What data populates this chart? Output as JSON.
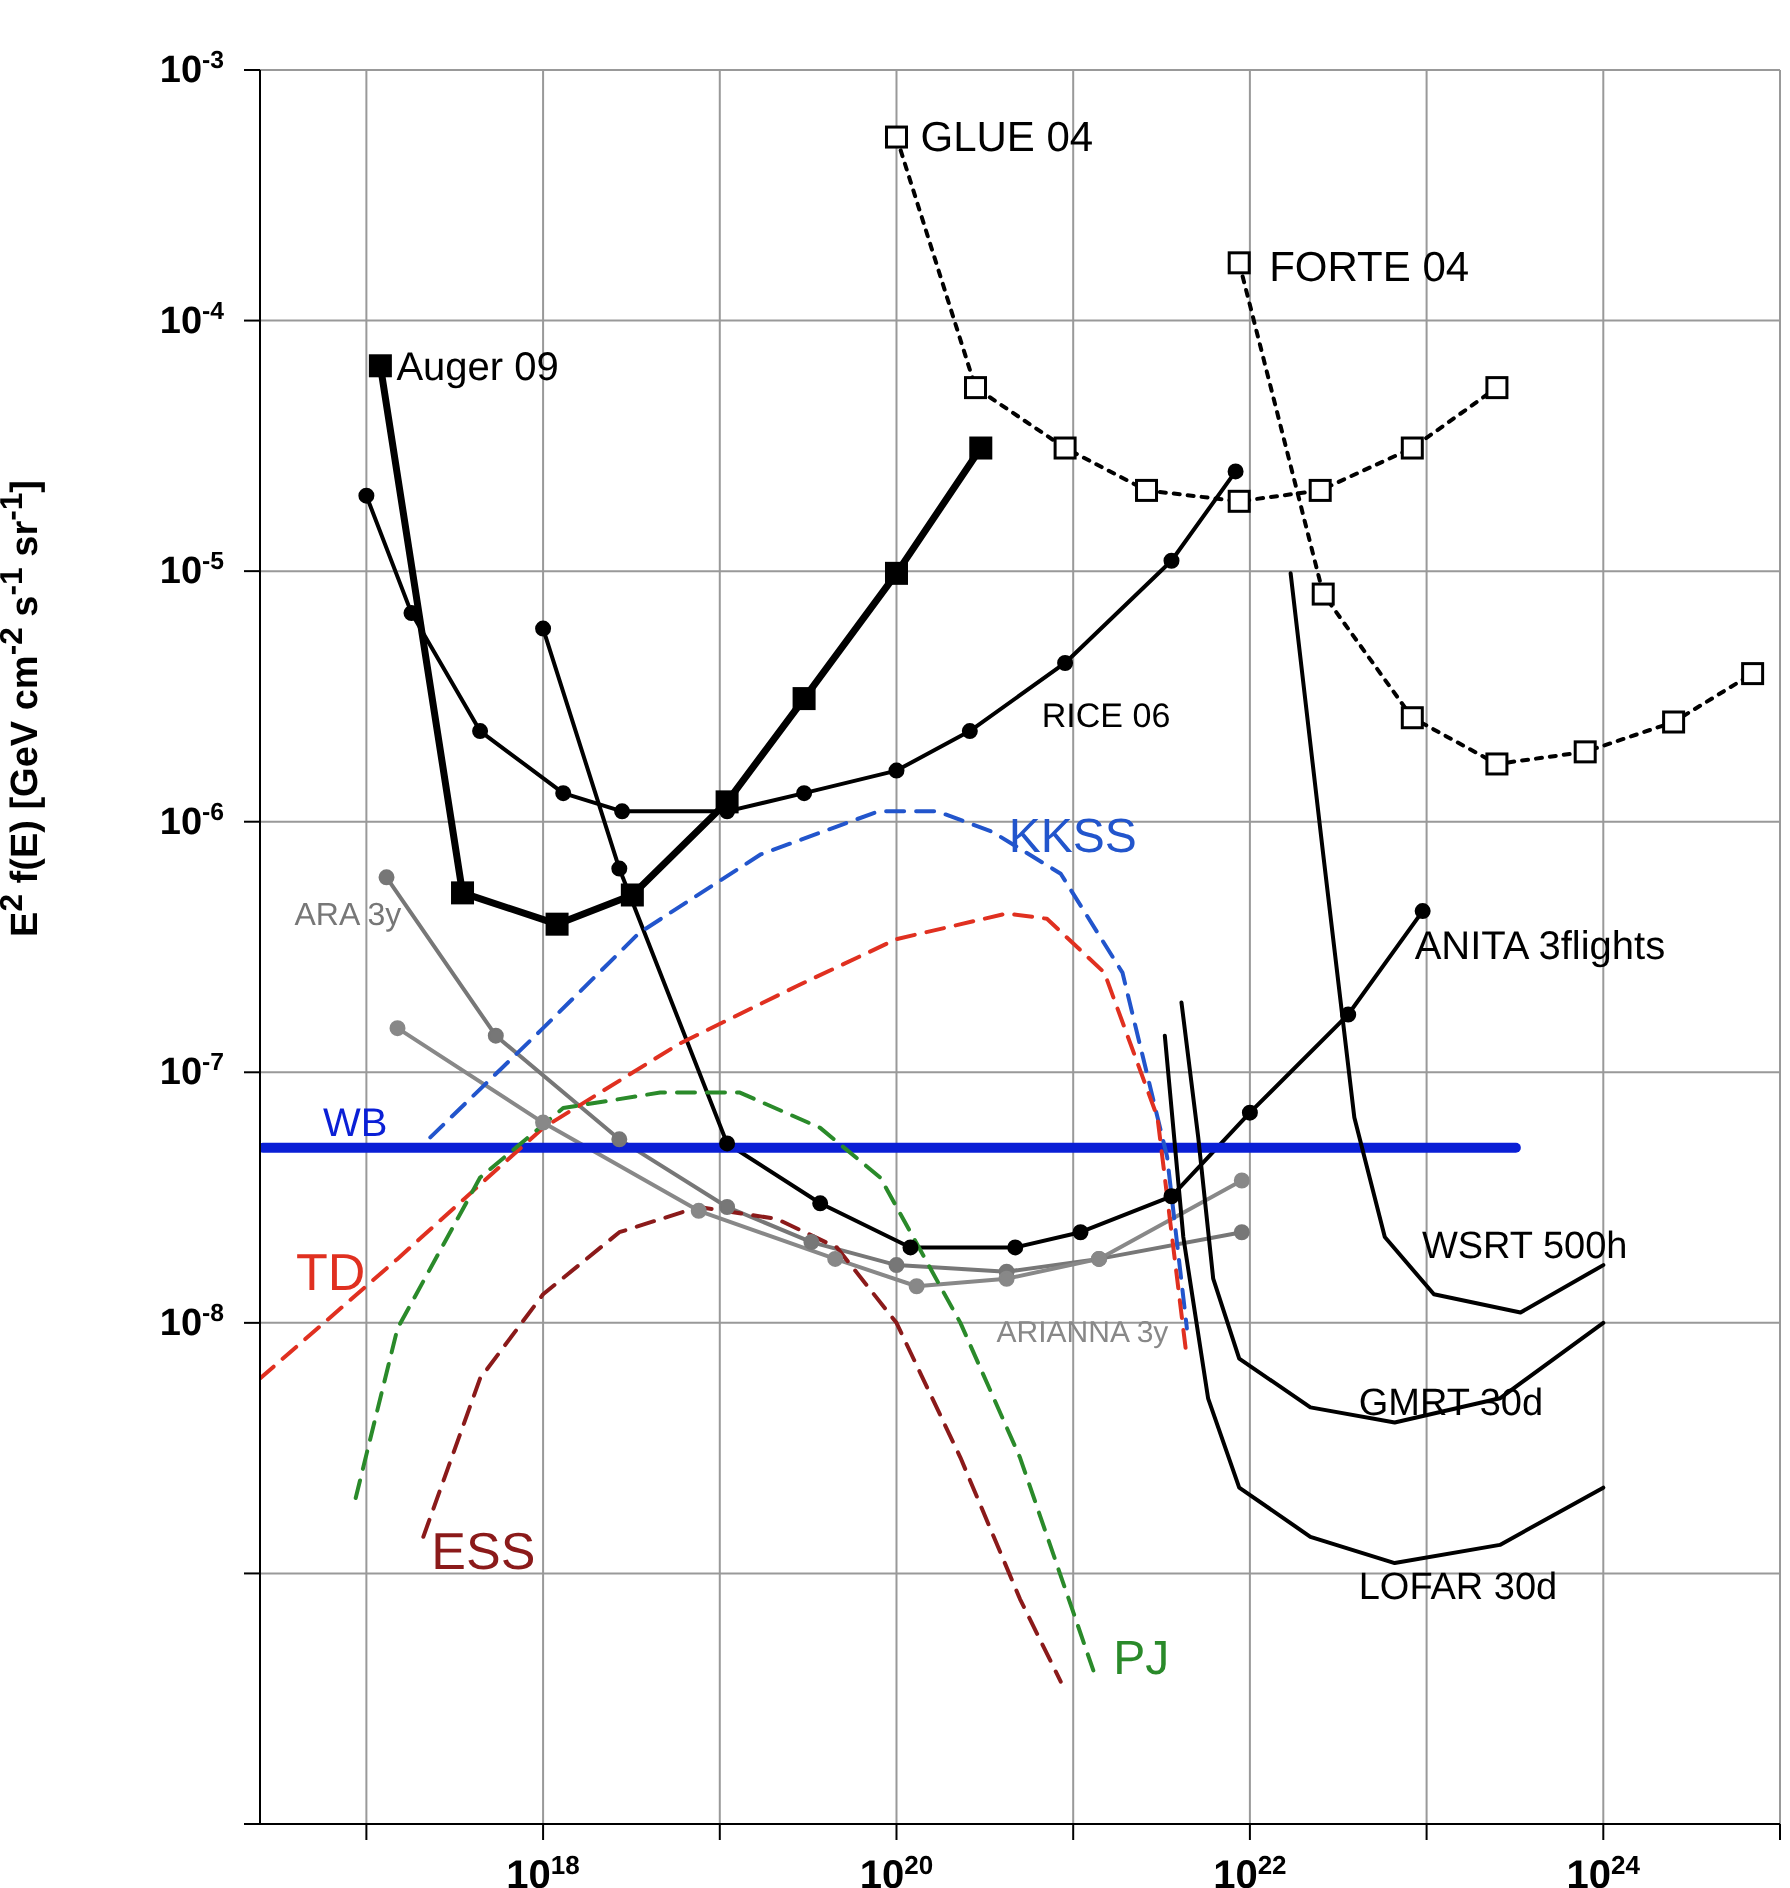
{
  "chart_data": {
    "type": "line",
    "ylabel": "E$^{2}$ f(E) [GeV cm$^{-2}$ s$^{-1}$ sr$^{-1}$]",
    "log": "xy",
    "grid": true,
    "xlim": [
      2.5e+16,
      1e+25
    ],
    "ylim": [
      1e-10,
      0.001
    ],
    "xticks": [
      {
        "value": 1e+17,
        "label": null
      },
      {
        "value": 1e+18,
        "label": "10$^{18}$"
      },
      {
        "value": 1e+19,
        "label": null
      },
      {
        "value": 1e+20,
        "label": "10$^{20}$"
      },
      {
        "value": 1e+21,
        "label": null
      },
      {
        "value": 1e+22,
        "label": "10$^{22}$"
      },
      {
        "value": 1e+23,
        "label": null
      },
      {
        "value": 1e+24,
        "label": "10$^{24}$"
      },
      {
        "value": 1e+25,
        "label": null
      }
    ],
    "yticks": [
      {
        "value": 1e-10,
        "label": null
      },
      {
        "value": 1e-09,
        "label": null
      },
      {
        "value": 1e-08,
        "label": "10$^{-8}$"
      },
      {
        "value": 1e-07,
        "label": "10$^{-7}$"
      },
      {
        "value": 1e-06,
        "label": "10$^{-6}$"
      },
      {
        "value": 1e-05,
        "label": "10$^{-5}$"
      },
      {
        "value": 0.0001,
        "label": "10$^{-4}$"
      },
      {
        "value": 0.001,
        "label": "10$^{-3}$"
      }
    ],
    "series": [
      {
        "name": "Auger 09",
        "color": "#000000",
        "marker": "square",
        "line_style": "solid",
        "x": [
          1.2e+17,
          3.5e+17,
          1.2e+18,
          3.2e+18,
          1.1e+19,
          3e+19,
          1e+20,
          3e+20
        ],
        "values": [
          6.6e-05,
          5.2e-07,
          3.9e-07,
          5.1e-07,
          1.2e-06,
          3.1e-06,
          9.8e-06,
          3.1e-05
        ]
      },
      {
        "name": "RICE 06",
        "color": "#000000",
        "marker": "circle",
        "line_style": "solid",
        "x": [
          1e+17,
          1.8e+17,
          4.4e+17,
          1.3e+18,
          2.8e+18,
          1.1e+19,
          3e+19,
          1e+20,
          2.6e+20,
          9e+20,
          3.6e+21,
          8.3e+21
        ],
        "values": [
          2e-05,
          6.8e-06,
          2.3e-06,
          1.3e-06,
          1.1e-06,
          1.1e-06,
          1.3e-06,
          1.6e-06,
          2.3e-06,
          4.3e-06,
          1.1e-05,
          2.5e-05
        ]
      },
      {
        "name": "ANITA 3flights",
        "color": "#000000",
        "marker": "circle",
        "line_style": "solid",
        "x": [
          1e+18,
          2.7e+18,
          1.1e+19,
          3.7e+19,
          1.2e+20,
          4.7e+20,
          1.1e+21,
          3.6e+21,
          1e+22,
          3.6e+22,
          9.5e+22
        ],
        "values": [
          5.9e-06,
          6.5e-07,
          5.2e-08,
          3e-08,
          2e-08,
          2e-08,
          2.3e-08,
          3.2e-08,
          6.9e-08,
          1.7e-07,
          4.4e-07
        ]
      },
      {
        "name": "GLUE 04",
        "color": "#000000",
        "marker": "square",
        "line_style": "dotted",
        "x": [
          1e+20,
          2.8e+20,
          9e+20,
          2.6e+21,
          8.7e+21,
          2.5e+22,
          8.3e+22,
          2.5e+23
        ],
        "values": [
          0.00054,
          5.4e-05,
          3.1e-05,
          2.1e-05,
          1.9e-05,
          2.1e-05,
          3.1e-05,
          5.4e-05
        ]
      },
      {
        "name": "FORTE 04",
        "color": "#000000",
        "marker": "square",
        "line_style": "dotted",
        "x": [
          8.7e+21,
          2.6e+22,
          8.3e+22,
          2.5e+23,
          7.9e+23,
          2.5e+24,
          7e+24
        ],
        "values": [
          0.00017,
          8.1e-06,
          2.6e-06,
          1.7e-06,
          1.9e-06,
          2.5e-06,
          3.9e-06
        ]
      },
      {
        "name": "ARA 3y",
        "color": "#777777",
        "marker": "circle",
        "line_style": "solid",
        "x": [
          1.3e+17,
          5.4e+17,
          2.7e+18,
          1.1e+19,
          3.3e+19,
          1e+20,
          4.2e+20,
          1.4e+21,
          9e+21
        ],
        "values": [
          6e-07,
          1.4e-07,
          5.4e-08,
          2.9e-08,
          2.1e-08,
          1.7e-08,
          1.6e-08,
          1.8e-08,
          2.3e-08
        ]
      },
      {
        "name": "ARIANNA 3y",
        "color": "#888888",
        "marker": "circle",
        "line_style": "solid",
        "x": [
          1.5e+17,
          1e+18,
          7.6e+18,
          4.5e+19,
          1.3e+20,
          4.2e+20,
          1.4e+21,
          9e+21
        ],
        "values": [
          1.5e-07,
          6.3e-08,
          2.8e-08,
          1.8e-08,
          1.4e-08,
          1.5e-08,
          1.8e-08,
          3.7e-08
        ]
      },
      {
        "name": "WB",
        "color": "#0a1fd6",
        "marker": "none",
        "line_style": "solid",
        "x": [
          2.6e+16,
          3.2e+23
        ],
        "values": [
          5e-08,
          5e-08
        ]
      },
      {
        "name": "KKSS",
        "color": "#2255cc",
        "marker": "none",
        "line_style": "dashed",
        "x": [
          2.3e+17,
          1e+18,
          3.5e+18,
          1.7e+19,
          7.9e+19,
          1.7e+20,
          3.5e+20,
          8.5e+20,
          1.9e+21,
          3.4e+21,
          4.4e+21
        ],
        "values": [
          5.5e-08,
          1.5e-07,
          3.6e-07,
          7.4e-07,
          1.1e-06,
          1.1e-06,
          9.1e-07,
          6.2e-07,
          2.5e-07,
          4.6e-08,
          9.5e-09
        ]
      },
      {
        "name": "TD",
        "color": "#e03020",
        "marker": "none",
        "line_style": "dashed",
        "x": [
          2.5e+16,
          1.5e+17,
          1e+18,
          5.9e+18,
          2.7e+19,
          1e+20,
          4.2e+20,
          7.1e+20,
          1.5e+21,
          3e+21,
          4.4e+21
        ],
        "values": [
          6e-09,
          1.8e-08,
          6e-08,
          1.3e-07,
          2.2e-07,
          3.4e-07,
          4.3e-07,
          4.1e-07,
          2.5e-07,
          6.6e-08,
          7.2e-09
        ]
      },
      {
        "name": "PJ",
        "color": "#2a8a2a",
        "marker": "none",
        "line_style": "dashed",
        "x": [
          8.7e+16,
          1.5e+17,
          4.4e+17,
          1.3e+18,
          4.6e+18,
          1.3e+19,
          3.7e+19,
          8.1e+19,
          2.3e+20,
          5e+20,
          1.3e+21
        ],
        "values": [
          2e-09,
          9.5e-09,
          3.8e-08,
          7.2e-08,
          8.3e-08,
          8.3e-08,
          6e-08,
          3.8e-08,
          1e-08,
          2.9e-09,
          4.1e-10
        ]
      },
      {
        "name": "ESS",
        "color": "#8b1a1a",
        "marker": "none",
        "line_style": "dashed",
        "x": [
          2.1e+17,
          4.4e+17,
          1e+18,
          2.7e+18,
          7.6e+18,
          2.1e+19,
          4.6e+19,
          1e+20,
          2.3e+20,
          5e+20,
          8.5e+20
        ],
        "values": [
          1.4e-09,
          6e-09,
          1.3e-08,
          2.3e-08,
          2.9e-08,
          2.6e-08,
          2e-08,
          1e-08,
          2.9e-09,
          7.9e-10,
          3.7e-10
        ]
      },
      {
        "name": "WSRT 500h",
        "color": "#000000",
        "marker": "none",
        "line_style": "solid",
        "x": [
          1.7e+22,
          2.6e+22,
          3.9e+22,
          5.8e+22,
          1.1e+23,
          3.4e+23,
          1e+24
        ],
        "values": [
          9.8e-06,
          7.4e-07,
          6.6e-08,
          2.2e-08,
          1.3e-08,
          1.1e-08,
          1.7e-08
        ]
      },
      {
        "name": "GMRT 30d",
        "color": "#000000",
        "marker": "none",
        "line_style": "solid",
        "x": [
          4.1e+21,
          5.1e+21,
          6.2e+21,
          8.7e+21,
          2.2e+22,
          6.6e+22,
          2.6e+23,
          1e+24
        ],
        "values": [
          1.9e-07,
          5.5e-08,
          1.5e-08,
          7.2e-09,
          4.6e-09,
          4e-09,
          5e-09,
          1e-08
        ]
      },
      {
        "name": "LOFAR 30d",
        "color": "#000000",
        "marker": "none",
        "line_style": "solid",
        "x": [
          3.3e+21,
          4.2e+21,
          5.8e+21,
          8.7e+21,
          2.2e+22,
          6.6e+22,
          2.6e+23,
          1e+24
        ],
        "values": [
          1.4e-07,
          2.2e-08,
          5e-09,
          2.2e-09,
          1.4e-09,
          1.1e-09,
          1.3e-09,
          2.2e-09
        ]
      }
    ]
  }
}
